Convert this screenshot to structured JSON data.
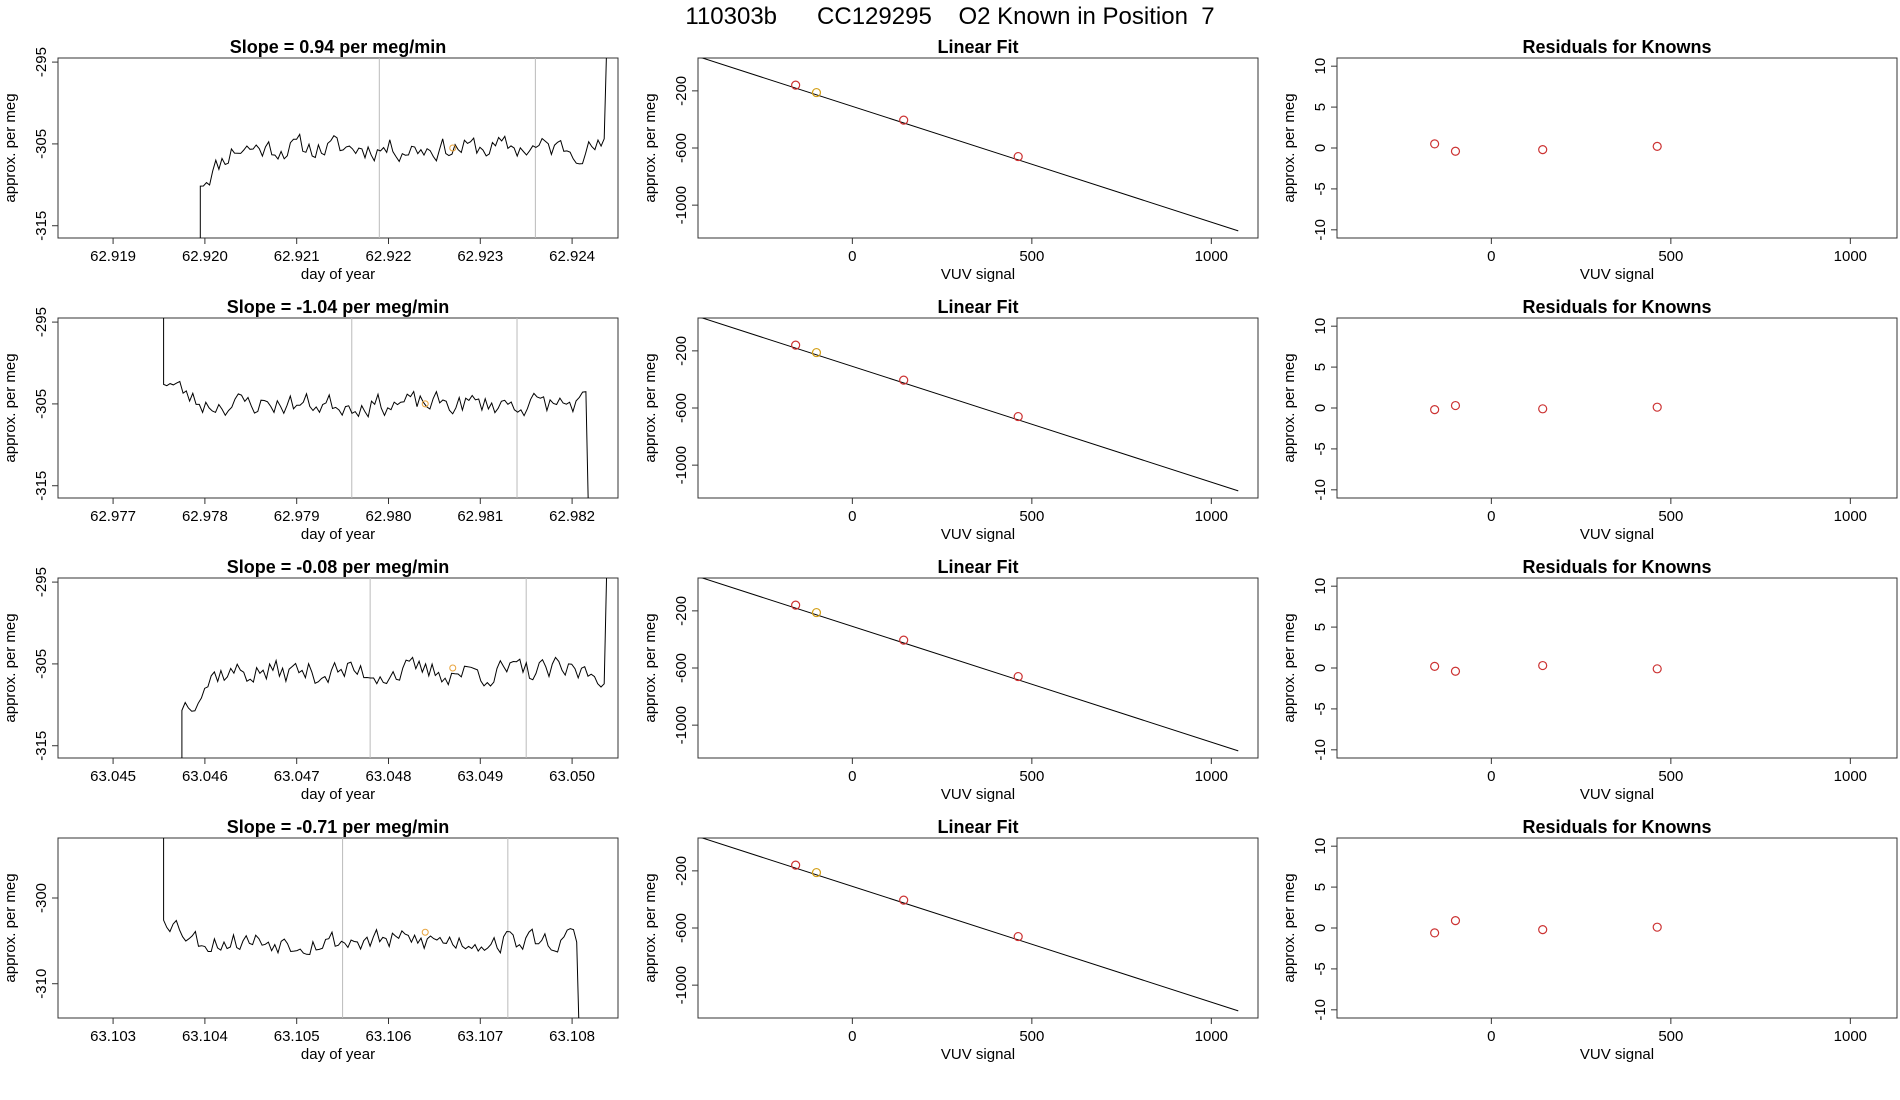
{
  "page": {
    "title": "110303b      CC129295    O2 Known in Position  7"
  },
  "chart_data": [
    {
      "type": "line",
      "title": "Slope =  0.94  per meg/min",
      "xlabel": "day of year",
      "ylabel": "approx. per meg",
      "xlim": [
        62.9184,
        62.9245
      ],
      "ylim": [
        -316.5,
        -294.5
      ],
      "xticks": [
        62.919,
        62.92,
        62.921,
        62.922,
        62.923,
        62.924
      ],
      "xtick_labels": [
        "62.919",
        "62.920",
        "62.921",
        "62.922",
        "62.923",
        "62.924"
      ],
      "yticks": [
        -315,
        -305,
        -295
      ],
      "ytick_labels": [
        "-315",
        "-305",
        "-295"
      ],
      "vlines": [
        62.9219,
        62.9236
      ],
      "marker": {
        "x": 62.9227,
        "y": -305.5
      },
      "trace": {
        "start": 62.91995,
        "end": 62.92435,
        "pre": -317,
        "rise": 1,
        "rise_to": -309.5,
        "level": -305.5,
        "amp": 2.3,
        "post": -293,
        "seed": 11
      }
    },
    {
      "type": "scatter",
      "title": "Linear Fit",
      "xlabel": "VUV signal",
      "ylabel": "approx. per meg",
      "xlim": [
        -430,
        1130
      ],
      "ylim": [
        -1230,
        30
      ],
      "xticks": [
        0,
        500,
        1000
      ],
      "xtick_labels": [
        "0",
        "500",
        "1000"
      ],
      "yticks": [
        -1000,
        -600,
        -200
      ],
      "ytick_labels": [
        "-1000",
        "-600",
        "-200"
      ],
      "line": {
        "x": [
          -430,
          1075
        ],
        "y": [
          40,
          -1180
        ]
      },
      "points": [
        {
          "x": -158,
          "y": -160,
          "color": "#cc3333"
        },
        {
          "x": -100,
          "y": -212,
          "color": "#d4a017"
        },
        {
          "x": 143,
          "y": -405,
          "color": "#cc3333"
        },
        {
          "x": 462,
          "y": -660,
          "color": "#cc3333"
        }
      ]
    },
    {
      "type": "scatter",
      "title": "Residuals for Knowns",
      "xlabel": "VUV signal",
      "ylabel": "approx. per meg",
      "xlim": [
        -430,
        1130
      ],
      "ylim": [
        -11,
        11
      ],
      "xticks": [
        0,
        500,
        1000
      ],
      "xtick_labels": [
        "0",
        "500",
        "1000"
      ],
      "yticks": [
        -10,
        -5,
        0,
        5,
        10
      ],
      "ytick_labels": [
        "-10",
        "-5",
        "0",
        "5",
        "10"
      ],
      "points": [
        {
          "x": -158,
          "y": 0.5,
          "color": "#cc3333"
        },
        {
          "x": -100,
          "y": -0.4,
          "color": "#cc3333"
        },
        {
          "x": 143,
          "y": -0.2,
          "color": "#cc3333"
        },
        {
          "x": 462,
          "y": 0.2,
          "color": "#cc3333"
        }
      ]
    },
    {
      "type": "line",
      "title": "Slope =  -1.04  per meg/min",
      "xlabel": "day of year",
      "ylabel": "approx. per meg",
      "xlim": [
        62.9764,
        62.9825
      ],
      "ylim": [
        -316.5,
        -294.5
      ],
      "xticks": [
        62.977,
        62.978,
        62.979,
        62.98,
        62.981,
        62.982
      ],
      "xtick_labels": [
        "62.977",
        "62.978",
        "62.979",
        "62.980",
        "62.981",
        "62.982"
      ],
      "yticks": [
        -315,
        -305,
        -295
      ],
      "ytick_labels": [
        "-315",
        "-305",
        "-295"
      ],
      "vlines": [
        62.9796,
        62.9814
      ],
      "marker": {
        "x": 62.9804,
        "y": -305
      },
      "trace": {
        "start": 62.97755,
        "end": 62.98215,
        "pre": -293,
        "rise": 1,
        "rise_to": -302,
        "level": -305,
        "amp": 2.2,
        "post": -318,
        "seed": 23
      }
    },
    {
      "type": "scatter",
      "title": "Linear Fit",
      "xlabel": "VUV signal",
      "ylabel": "approx. per meg",
      "xlim": [
        -430,
        1130
      ],
      "ylim": [
        -1230,
        30
      ],
      "xticks": [
        0,
        500,
        1000
      ],
      "xtick_labels": [
        "0",
        "500",
        "1000"
      ],
      "yticks": [
        -1000,
        -600,
        -200
      ],
      "ytick_labels": [
        "-1000",
        "-600",
        "-200"
      ],
      "line": {
        "x": [
          -430,
          1075
        ],
        "y": [
          40,
          -1180
        ]
      },
      "points": [
        {
          "x": -158,
          "y": -160,
          "color": "#cc3333"
        },
        {
          "x": -100,
          "y": -212,
          "color": "#d4a017"
        },
        {
          "x": 143,
          "y": -405,
          "color": "#cc3333"
        },
        {
          "x": 462,
          "y": -660,
          "color": "#cc3333"
        }
      ]
    },
    {
      "type": "scatter",
      "title": "Residuals for Knowns",
      "xlabel": "VUV signal",
      "ylabel": "approx. per meg",
      "xlim": [
        -430,
        1130
      ],
      "ylim": [
        -11,
        11
      ],
      "xticks": [
        0,
        500,
        1000
      ],
      "xtick_labels": [
        "0",
        "500",
        "1000"
      ],
      "yticks": [
        -10,
        -5,
        0,
        5,
        10
      ],
      "ytick_labels": [
        "-10",
        "-5",
        "0",
        "5",
        "10"
      ],
      "points": [
        {
          "x": -158,
          "y": -0.2,
          "color": "#cc3333"
        },
        {
          "x": -100,
          "y": 0.3,
          "color": "#cc3333"
        },
        {
          "x": 143,
          "y": -0.1,
          "color": "#cc3333"
        },
        {
          "x": 462,
          "y": 0.1,
          "color": "#cc3333"
        }
      ]
    },
    {
      "type": "line",
      "title": "Slope =  -0.08  per meg/min",
      "xlabel": "day of year",
      "ylabel": "approx. per meg",
      "xlim": [
        63.0444,
        63.0505
      ],
      "ylim": [
        -316.5,
        -294.5
      ],
      "xticks": [
        63.045,
        63.046,
        63.047,
        63.048,
        63.049,
        63.05
      ],
      "xtick_labels": [
        "63.045",
        "63.046",
        "63.047",
        "63.048",
        "63.049",
        "63.050"
      ],
      "yticks": [
        -315,
        -305,
        -295
      ],
      "ytick_labels": [
        "-315",
        "-305",
        "-295"
      ],
      "vlines": [
        63.0478,
        63.0495
      ],
      "marker": {
        "x": 63.0487,
        "y": -305.5
      },
      "trace": {
        "start": 63.04575,
        "end": 63.05035,
        "pre": -317,
        "rise": 1,
        "rise_to": -310,
        "level": -306,
        "amp": 2.5,
        "post": -293,
        "seed": 37
      }
    },
    {
      "type": "scatter",
      "title": "Linear Fit",
      "xlabel": "VUV signal",
      "ylabel": "approx. per meg",
      "xlim": [
        -430,
        1130
      ],
      "ylim": [
        -1230,
        30
      ],
      "xticks": [
        0,
        500,
        1000
      ],
      "xtick_labels": [
        "0",
        "500",
        "1000"
      ],
      "yticks": [
        -1000,
        -600,
        -200
      ],
      "ytick_labels": [
        "-1000",
        "-600",
        "-200"
      ],
      "line": {
        "x": [
          -430,
          1075
        ],
        "y": [
          40,
          -1180
        ]
      },
      "points": [
        {
          "x": -158,
          "y": -160,
          "color": "#cc3333"
        },
        {
          "x": -100,
          "y": -212,
          "color": "#d4a017"
        },
        {
          "x": 143,
          "y": -405,
          "color": "#cc3333"
        },
        {
          "x": 462,
          "y": -660,
          "color": "#cc3333"
        }
      ]
    },
    {
      "type": "scatter",
      "title": "Residuals for Knowns",
      "xlabel": "VUV signal",
      "ylabel": "approx. per meg",
      "xlim": [
        -430,
        1130
      ],
      "ylim": [
        -11,
        11
      ],
      "xticks": [
        0,
        500,
        1000
      ],
      "xtick_labels": [
        "0",
        "500",
        "1000"
      ],
      "yticks": [
        -10,
        -5,
        0,
        5,
        10
      ],
      "ytick_labels": [
        "-10",
        "-5",
        "0",
        "5",
        "10"
      ],
      "points": [
        {
          "x": -158,
          "y": 0.2,
          "color": "#cc3333"
        },
        {
          "x": -100,
          "y": -0.4,
          "color": "#cc3333"
        },
        {
          "x": 143,
          "y": 0.3,
          "color": "#cc3333"
        },
        {
          "x": 462,
          "y": -0.1,
          "color": "#cc3333"
        }
      ]
    },
    {
      "type": "line",
      "title": "Slope =  -0.71  per meg/min",
      "xlabel": "day of year",
      "ylabel": "approx. per meg",
      "xlim": [
        63.1024,
        63.1085
      ],
      "ylim": [
        -314,
        -293
      ],
      "xticks": [
        63.103,
        63.104,
        63.105,
        63.106,
        63.107,
        63.108
      ],
      "xtick_labels": [
        "63.103",
        "63.104",
        "63.105",
        "63.106",
        "63.107",
        "63.108"
      ],
      "yticks": [
        -310,
        -300
      ],
      "ytick_labels": [
        "-310",
        "-300"
      ],
      "vlines": [
        63.1055,
        63.1073
      ],
      "marker": {
        "x": 63.1064,
        "y": -304
      },
      "trace": {
        "start": 63.10355,
        "end": 63.10805,
        "pre": -292,
        "rise": 1,
        "rise_to": -302,
        "level": -305,
        "amp": 2.2,
        "post": -316,
        "seed": 53
      }
    },
    {
      "type": "scatter",
      "title": "Linear Fit",
      "xlabel": "VUV signal",
      "ylabel": "approx. per meg",
      "xlim": [
        -430,
        1130
      ],
      "ylim": [
        -1230,
        30
      ],
      "xticks": [
        0,
        500,
        1000
      ],
      "xtick_labels": [
        "0",
        "500",
        "1000"
      ],
      "yticks": [
        -1000,
        -600,
        -200
      ],
      "ytick_labels": [
        "-1000",
        "-600",
        "-200"
      ],
      "line": {
        "x": [
          -430,
          1075
        ],
        "y": [
          40,
          -1180
        ]
      },
      "points": [
        {
          "x": -158,
          "y": -160,
          "color": "#cc3333"
        },
        {
          "x": -100,
          "y": -212,
          "color": "#d4a017"
        },
        {
          "x": 143,
          "y": -405,
          "color": "#cc3333"
        },
        {
          "x": 462,
          "y": -660,
          "color": "#cc3333"
        }
      ]
    },
    {
      "type": "scatter",
      "title": "Residuals for Knowns",
      "xlabel": "VUV signal",
      "ylabel": "approx. per meg",
      "xlim": [
        -430,
        1130
      ],
      "ylim": [
        -11,
        11
      ],
      "xticks": [
        0,
        500,
        1000
      ],
      "xtick_labels": [
        "0",
        "500",
        "1000"
      ],
      "yticks": [
        -10,
        -5,
        0,
        5,
        10
      ],
      "ytick_labels": [
        "-10",
        "-5",
        "0",
        "5",
        "10"
      ],
      "points": [
        {
          "x": -158,
          "y": -0.6,
          "color": "#cc3333"
        },
        {
          "x": -100,
          "y": 0.9,
          "color": "#cc3333"
        },
        {
          "x": 143,
          "y": -0.2,
          "color": "#cc3333"
        },
        {
          "x": 462,
          "y": 0.1,
          "color": "#cc3333"
        }
      ]
    }
  ]
}
